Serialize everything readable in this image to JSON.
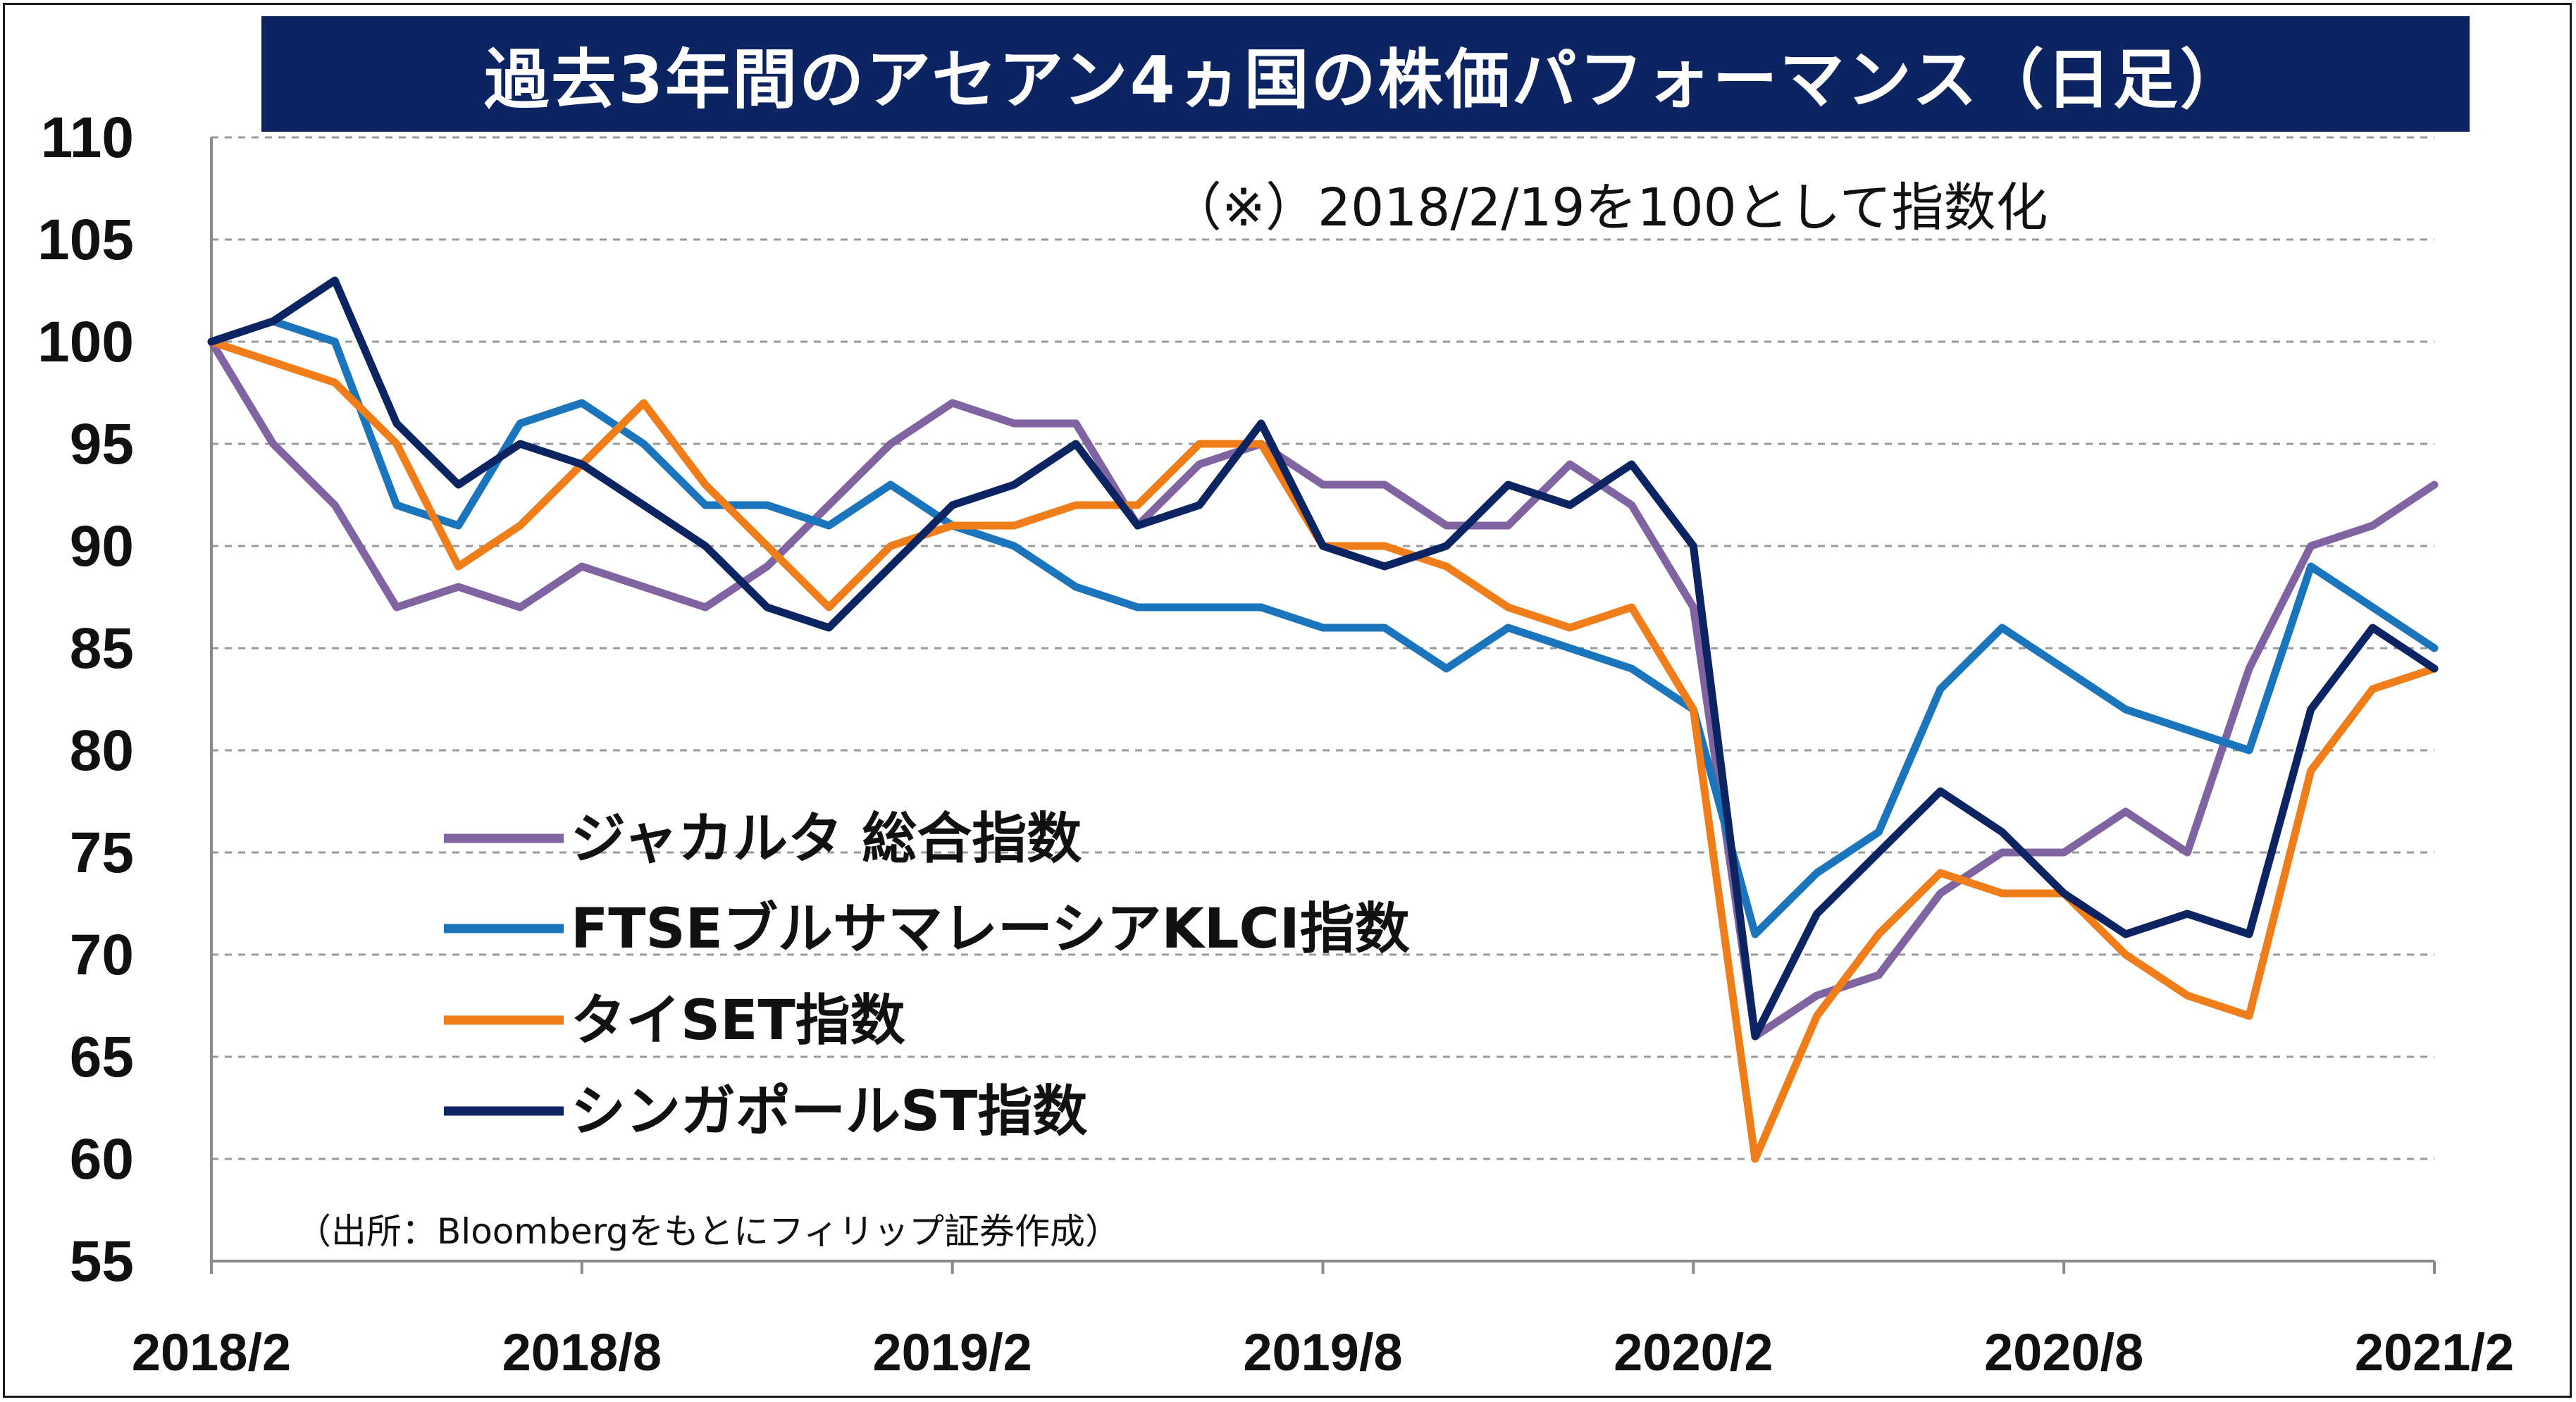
{
  "title": "過去3年間のアセアン4ヵ国の株価パフォーマンス（日足）",
  "note": "（※）2018/2/19を100として指数化",
  "source": "（出所：Bloombergをもとにフィリップ証券作成）",
  "chart_data": {
    "type": "line",
    "ylim": [
      55,
      110
    ],
    "yticks": [
      "110",
      "105",
      "100",
      "95",
      "90",
      "85",
      "80",
      "75",
      "70",
      "65",
      "60",
      "55"
    ],
    "xticks": [
      "2018/2",
      "2018/8",
      "2019/2",
      "2019/8",
      "2020/2",
      "2020/8",
      "2021/2"
    ],
    "grid": "horizontal dashed",
    "legend_position": "left-center",
    "x": [
      "2018/2",
      "2018/3",
      "2018/4",
      "2018/5",
      "2018/6",
      "2018/7",
      "2018/8",
      "2018/9",
      "2018/10",
      "2018/11",
      "2018/12",
      "2019/1",
      "2019/2",
      "2019/3",
      "2019/4",
      "2019/5",
      "2019/6",
      "2019/7",
      "2019/8",
      "2019/9",
      "2019/10",
      "2019/11",
      "2019/12",
      "2020/1",
      "2020/2",
      "2020/3",
      "2020/4",
      "2020/5",
      "2020/6",
      "2020/7",
      "2020/8",
      "2020/9",
      "2020/10",
      "2020/11",
      "2020/12",
      "2021/1",
      "2021/2"
    ],
    "series": [
      {
        "name": "ジャカルタ 総合指数",
        "color": "#8064a2",
        "values": [
          100,
          95,
          92,
          87,
          88,
          87,
          89,
          88,
          87,
          89,
          92,
          95,
          97,
          96,
          96,
          91,
          94,
          95,
          93,
          93,
          91,
          91,
          94,
          92,
          87,
          66,
          68,
          69,
          73,
          75,
          75,
          77,
          75,
          84,
          90,
          91,
          93
        ]
      },
      {
        "name": "FTSEブルサマレーシアKLCI指数",
        "color": "#1b75bc",
        "values": [
          100,
          101,
          100,
          92,
          91,
          96,
          97,
          95,
          92,
          92,
          91,
          93,
          91,
          90,
          88,
          87,
          87,
          87,
          86,
          86,
          84,
          86,
          85,
          84,
          82,
          71,
          74,
          76,
          83,
          86,
          84,
          82,
          81,
          80,
          89,
          87,
          85
        ]
      },
      {
        "name": "タイSET指数",
        "color": "#ef7d1a",
        "values": [
          100,
          99,
          98,
          95,
          89,
          91,
          94,
          97,
          93,
          90,
          87,
          90,
          91,
          91,
          92,
          92,
          95,
          95,
          90,
          90,
          89,
          87,
          86,
          87,
          82,
          60,
          67,
          71,
          74,
          73,
          73,
          70,
          68,
          67,
          79,
          83,
          84
        ]
      },
      {
        "name": "シンガポールST指数",
        "color": "#0c2461",
        "values": [
          100,
          101,
          103,
          96,
          93,
          95,
          94,
          92,
          90,
          87,
          86,
          89,
          92,
          93,
          95,
          91,
          92,
          96,
          90,
          89,
          90,
          93,
          92,
          94,
          90,
          66,
          72,
          75,
          78,
          76,
          73,
          71,
          72,
          71,
          82,
          86,
          84
        ]
      }
    ]
  }
}
